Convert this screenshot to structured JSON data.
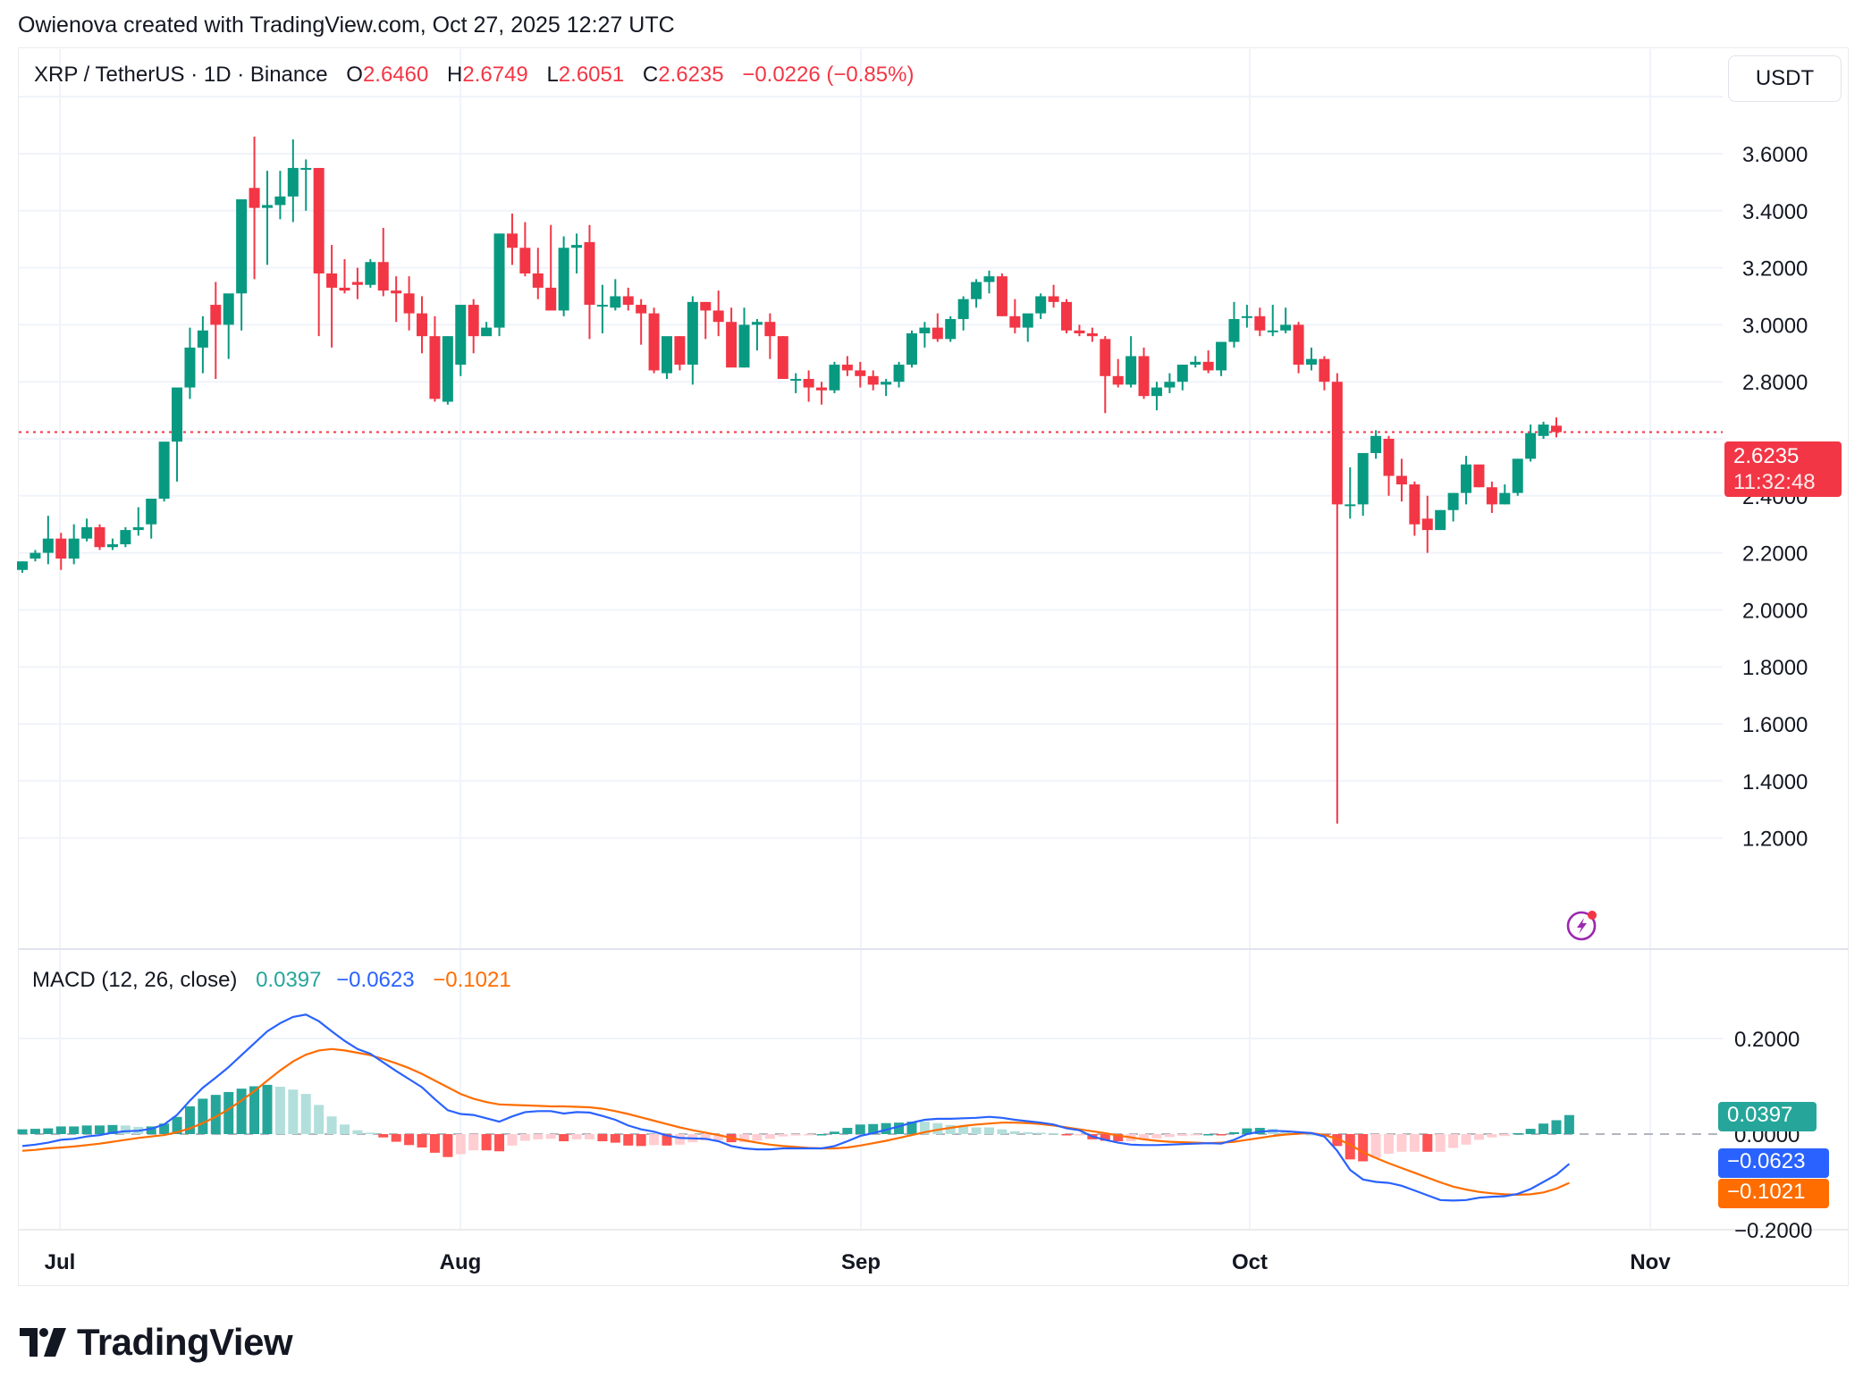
{
  "attribution": "Owienova created with TradingView.com, Oct 27, 2025 12:27 UTC",
  "header": {
    "symbol": "XRP / TetherUS · 1D · Binance",
    "open_label": "O",
    "open": "2.6460",
    "high_label": "H",
    "high": "2.6749",
    "low_label": "L",
    "low": "2.6051",
    "close_label": "C",
    "close": "2.6235",
    "change": "−0.0226 (−0.85%)"
  },
  "currency_button": "USDT",
  "last_price_tag": {
    "price": "2.6235",
    "countdown": "11:32:48",
    "color": "#f23645"
  },
  "macd_legend": {
    "title": "MACD (12, 26, close)",
    "histogram": "0.0397",
    "macd": "−0.0623",
    "signal": "−0.1021"
  },
  "macd_tags": {
    "histogram": {
      "text": "0.0397",
      "color": "#26a69a"
    },
    "macd": {
      "text": "−0.0623",
      "color": "#2962ff"
    },
    "signal": {
      "text": "−0.1021",
      "color": "#ff6d00"
    }
  },
  "logo": {
    "text": "TradingView"
  },
  "colors": {
    "up": "#089981",
    "down": "#f23645",
    "grid": "#f0f3fa",
    "macd": "#2962ff",
    "signal": "#ff6d00",
    "hist_up_strong": "#26a69a",
    "hist_up_weak": "#b2dfdb",
    "hist_down_strong": "#ff5252",
    "hist_down_weak": "#ffcdd2"
  },
  "chart_data": [
    {
      "type": "candlestick",
      "title": "XRP / TetherUS · 1D · Binance",
      "xlabel": "",
      "ylabel": "USDT",
      "x_ticks": [
        "Jul",
        "Aug",
        "Sep",
        "Oct",
        "Nov"
      ],
      "y_ticks": [
        "3.6000",
        "3.4000",
        "3.2000",
        "3.0000",
        "2.8000",
        "2.4000",
        "2.2000",
        "2.0000",
        "1.8000",
        "1.6000",
        "1.4000",
        "1.2000"
      ],
      "ylim": [
        1.05,
        3.85
      ],
      "last_close": 2.6235,
      "start_date": "2025-06-28",
      "ohlc": [
        [
          2.14,
          2.17,
          2.13,
          2.17
        ],
        [
          2.18,
          2.21,
          2.17,
          2.2
        ],
        [
          2.2,
          2.33,
          2.16,
          2.25
        ],
        [
          2.25,
          2.27,
          2.14,
          2.18
        ],
        [
          2.18,
          2.3,
          2.16,
          2.25
        ],
        [
          2.25,
          2.32,
          2.24,
          2.29
        ],
        [
          2.29,
          2.3,
          2.21,
          2.22
        ],
        [
          2.22,
          2.25,
          2.21,
          2.23
        ],
        [
          2.23,
          2.29,
          2.22,
          2.28
        ],
        [
          2.28,
          2.36,
          2.26,
          2.29
        ],
        [
          2.3,
          2.34,
          2.25,
          2.39
        ],
        [
          2.39,
          2.46,
          2.38,
          2.59
        ],
        [
          2.59,
          2.66,
          2.45,
          2.78
        ],
        [
          2.78,
          2.99,
          2.74,
          2.92
        ],
        [
          2.92,
          3.03,
          2.83,
          2.98
        ],
        [
          3.07,
          3.15,
          2.81,
          3.0
        ],
        [
          3.0,
          3.09,
          2.88,
          3.11
        ],
        [
          3.11,
          3.16,
          2.98,
          3.44
        ],
        [
          3.48,
          3.66,
          3.16,
          3.41
        ],
        [
          3.41,
          3.54,
          3.21,
          3.42
        ],
        [
          3.42,
          3.54,
          3.37,
          3.45
        ],
        [
          3.45,
          3.65,
          3.36,
          3.55
        ],
        [
          3.55,
          3.58,
          3.4,
          3.55
        ],
        [
          3.55,
          3.55,
          2.96,
          3.18
        ],
        [
          3.18,
          3.28,
          2.92,
          3.13
        ],
        [
          3.13,
          3.23,
          3.11,
          3.12
        ],
        [
          3.15,
          3.2,
          3.09,
          3.14
        ],
        [
          3.14,
          3.23,
          3.13,
          3.22
        ],
        [
          3.22,
          3.34,
          3.1,
          3.12
        ],
        [
          3.12,
          3.17,
          3.01,
          3.11
        ],
        [
          3.11,
          3.17,
          2.98,
          3.04
        ],
        [
          3.04,
          3.1,
          2.9,
          2.96
        ],
        [
          2.96,
          3.03,
          2.73,
          2.74
        ],
        [
          2.73,
          2.96,
          2.72,
          2.96
        ],
        [
          2.86,
          3.0,
          2.82,
          3.07
        ],
        [
          3.07,
          3.09,
          2.9,
          2.96
        ],
        [
          2.96,
          3.01,
          2.97,
          2.99
        ],
        [
          2.99,
          3.32,
          2.96,
          3.32
        ],
        [
          3.32,
          3.39,
          3.21,
          3.27
        ],
        [
          3.27,
          3.36,
          3.17,
          3.18
        ],
        [
          3.18,
          3.27,
          3.09,
          3.13
        ],
        [
          3.13,
          3.35,
          3.12,
          3.05
        ],
        [
          3.05,
          3.31,
          3.03,
          3.27
        ],
        [
          3.27,
          3.32,
          3.18,
          3.28
        ],
        [
          3.29,
          3.35,
          2.95,
          3.07
        ],
        [
          3.07,
          3.14,
          2.97,
          3.07
        ],
        [
          3.06,
          3.16,
          3.05,
          3.1
        ],
        [
          3.1,
          3.13,
          3.05,
          3.07
        ],
        [
          3.07,
          3.09,
          2.93,
          3.04
        ],
        [
          3.04,
          3.06,
          2.83,
          2.84
        ],
        [
          2.83,
          2.95,
          2.81,
          2.96
        ],
        [
          2.96,
          2.96,
          2.84,
          2.86
        ],
        [
          2.86,
          3.1,
          2.79,
          3.08
        ],
        [
          3.08,
          3.08,
          2.95,
          3.05
        ],
        [
          3.05,
          3.12,
          2.96,
          3.01
        ],
        [
          3.01,
          3.06,
          2.86,
          2.85
        ],
        [
          2.85,
          3.06,
          2.85,
          3.0
        ],
        [
          3.0,
          3.02,
          2.91,
          3.01
        ],
        [
          3.01,
          3.04,
          2.88,
          2.96
        ],
        [
          2.96,
          2.96,
          2.81,
          2.81
        ],
        [
          2.81,
          2.83,
          2.76,
          2.81
        ],
        [
          2.81,
          2.84,
          2.73,
          2.78
        ],
        [
          2.78,
          2.8,
          2.72,
          2.77
        ],
        [
          2.77,
          2.87,
          2.76,
          2.86
        ],
        [
          2.86,
          2.89,
          2.82,
          2.84
        ],
        [
          2.84,
          2.87,
          2.78,
          2.82
        ],
        [
          2.82,
          2.84,
          2.77,
          2.79
        ],
        [
          2.79,
          2.81,
          2.75,
          2.8
        ],
        [
          2.8,
          2.87,
          2.78,
          2.86
        ],
        [
          2.86,
          2.98,
          2.85,
          2.97
        ],
        [
          2.97,
          3.01,
          2.92,
          2.99
        ],
        [
          2.99,
          3.04,
          2.94,
          2.95
        ],
        [
          2.95,
          3.03,
          2.94,
          3.02
        ],
        [
          3.02,
          3.1,
          2.98,
          3.09
        ],
        [
          3.09,
          3.16,
          3.06,
          3.15
        ],
        [
          3.15,
          3.19,
          3.11,
          3.17
        ],
        [
          3.17,
          3.18,
          3.03,
          3.03
        ],
        [
          3.03,
          3.09,
          2.97,
          2.99
        ],
        [
          2.99,
          3.03,
          2.94,
          3.04
        ],
        [
          3.04,
          3.11,
          3.02,
          3.1
        ],
        [
          3.1,
          3.14,
          3.06,
          3.08
        ],
        [
          3.08,
          3.09,
          2.97,
          2.98
        ],
        [
          2.98,
          3.0,
          2.96,
          2.97
        ],
        [
          2.97,
          2.99,
          2.94,
          2.96
        ],
        [
          2.95,
          2.96,
          2.69,
          2.82
        ],
        [
          2.82,
          2.88,
          2.78,
          2.79
        ],
        [
          2.79,
          2.96,
          2.78,
          2.89
        ],
        [
          2.89,
          2.92,
          2.74,
          2.75
        ],
        [
          2.75,
          2.8,
          2.7,
          2.78
        ],
        [
          2.78,
          2.83,
          2.76,
          2.8
        ],
        [
          2.8,
          2.86,
          2.77,
          2.86
        ],
        [
          2.86,
          2.89,
          2.85,
          2.87
        ],
        [
          2.87,
          2.91,
          2.83,
          2.84
        ],
        [
          2.84,
          2.92,
          2.82,
          2.94
        ],
        [
          2.94,
          3.08,
          2.92,
          3.02
        ],
        [
          3.03,
          3.07,
          2.99,
          3.03
        ],
        [
          3.03,
          3.06,
          2.96,
          2.98
        ],
        [
          2.98,
          3.07,
          2.96,
          2.98
        ],
        [
          2.98,
          3.06,
          2.97,
          3.0
        ],
        [
          3.0,
          3.01,
          2.83,
          2.86
        ],
        [
          2.86,
          2.92,
          2.84,
          2.88
        ],
        [
          2.88,
          2.89,
          2.77,
          2.8
        ],
        [
          2.8,
          2.83,
          1.25,
          2.37
        ],
        [
          2.37,
          2.5,
          2.32,
          2.37
        ],
        [
          2.37,
          2.55,
          2.33,
          2.55
        ],
        [
          2.55,
          2.63,
          2.53,
          2.61
        ],
        [
          2.6,
          2.61,
          2.4,
          2.47
        ],
        [
          2.47,
          2.53,
          2.38,
          2.44
        ],
        [
          2.44,
          2.45,
          2.26,
          2.3
        ],
        [
          2.32,
          2.4,
          2.2,
          2.28
        ],
        [
          2.28,
          2.35,
          2.28,
          2.35
        ],
        [
          2.35,
          2.41,
          2.31,
          2.41
        ],
        [
          2.41,
          2.54,
          2.37,
          2.51
        ],
        [
          2.51,
          2.48,
          2.43,
          2.43
        ],
        [
          2.43,
          2.45,
          2.34,
          2.37
        ],
        [
          2.37,
          2.44,
          2.37,
          2.41
        ],
        [
          2.41,
          2.53,
          2.4,
          2.53
        ],
        [
          2.53,
          2.65,
          2.52,
          2.62
        ],
        [
          2.61,
          2.66,
          2.6,
          2.65
        ],
        [
          2.646,
          2.6749,
          2.6051,
          2.6235
        ]
      ],
      "macd_series": {
        "name": "MACD (12, 26, close)",
        "y_ticks": [
          "0.2000",
          "0.0000",
          "−0.2000"
        ],
        "ylim": [
          -0.23,
          0.28
        ],
        "macd": [
          -0.025,
          -0.022,
          -0.018,
          -0.012,
          -0.01,
          -0.005,
          -0.002,
          0.003,
          0.006,
          0.007,
          0.011,
          0.02,
          0.04,
          0.07,
          0.097,
          0.118,
          0.14,
          0.165,
          0.19,
          0.215,
          0.232,
          0.245,
          0.25,
          0.236,
          0.215,
          0.195,
          0.178,
          0.168,
          0.15,
          0.132,
          0.115,
          0.098,
          0.073,
          0.05,
          0.042,
          0.04,
          0.033,
          0.026,
          0.037,
          0.046,
          0.048,
          0.048,
          0.043,
          0.046,
          0.045,
          0.038,
          0.03,
          0.018,
          0.01,
          0.005,
          -0.003,
          -0.008,
          -0.009,
          -0.01,
          -0.015,
          -0.025,
          -0.03,
          -0.032,
          -0.032,
          -0.03,
          -0.03,
          -0.03,
          -0.03,
          -0.025,
          -0.015,
          -0.004,
          0.002,
          0.009,
          0.016,
          0.024,
          0.03,
          0.032,
          0.032,
          0.033,
          0.034,
          0.036,
          0.034,
          0.03,
          0.027,
          0.024,
          0.02,
          0.012,
          0.008,
          -0.005,
          -0.012,
          -0.018,
          -0.022,
          -0.023,
          -0.023,
          -0.022,
          -0.021,
          -0.02,
          -0.019,
          -0.02,
          -0.012,
          0.0,
          0.005,
          0.007,
          0.006,
          0.004,
          0.002,
          -0.005,
          -0.035,
          -0.075,
          -0.095,
          -0.1,
          -0.102,
          -0.108,
          -0.118,
          -0.128,
          -0.138,
          -0.139,
          -0.138,
          -0.133,
          -0.131,
          -0.13,
          -0.125,
          -0.115,
          -0.1,
          -0.085,
          -0.0623
        ],
        "signal": [
          -0.035,
          -0.033,
          -0.03,
          -0.028,
          -0.026,
          -0.023,
          -0.02,
          -0.016,
          -0.012,
          -0.008,
          -0.005,
          -0.002,
          0.004,
          0.012,
          0.023,
          0.036,
          0.052,
          0.07,
          0.09,
          0.112,
          0.133,
          0.152,
          0.166,
          0.175,
          0.178,
          0.175,
          0.17,
          0.165,
          0.157,
          0.148,
          0.138,
          0.126,
          0.112,
          0.098,
          0.084,
          0.074,
          0.067,
          0.062,
          0.061,
          0.06,
          0.059,
          0.058,
          0.058,
          0.057,
          0.056,
          0.053,
          0.048,
          0.042,
          0.035,
          0.028,
          0.021,
          0.014,
          0.008,
          0.003,
          -0.002,
          -0.008,
          -0.013,
          -0.018,
          -0.022,
          -0.025,
          -0.027,
          -0.029,
          -0.03,
          -0.03,
          -0.028,
          -0.024,
          -0.019,
          -0.014,
          -0.008,
          -0.002,
          0.004,
          0.009,
          0.013,
          0.017,
          0.02,
          0.022,
          0.024,
          0.024,
          0.023,
          0.021,
          0.018,
          0.014,
          0.01,
          0.006,
          0.002,
          -0.003,
          -0.007,
          -0.011,
          -0.014,
          -0.016,
          -0.017,
          -0.018,
          -0.019,
          -0.018,
          -0.016,
          -0.012,
          -0.008,
          -0.004,
          -0.001,
          0.001,
          0.002,
          -0.002,
          -0.01,
          -0.022,
          -0.038,
          -0.05,
          -0.061,
          -0.071,
          -0.081,
          -0.091,
          -0.101,
          -0.11,
          -0.116,
          -0.121,
          -0.124,
          -0.126,
          -0.127,
          -0.126,
          -0.122,
          -0.114,
          -0.1021
        ]
      }
    }
  ]
}
